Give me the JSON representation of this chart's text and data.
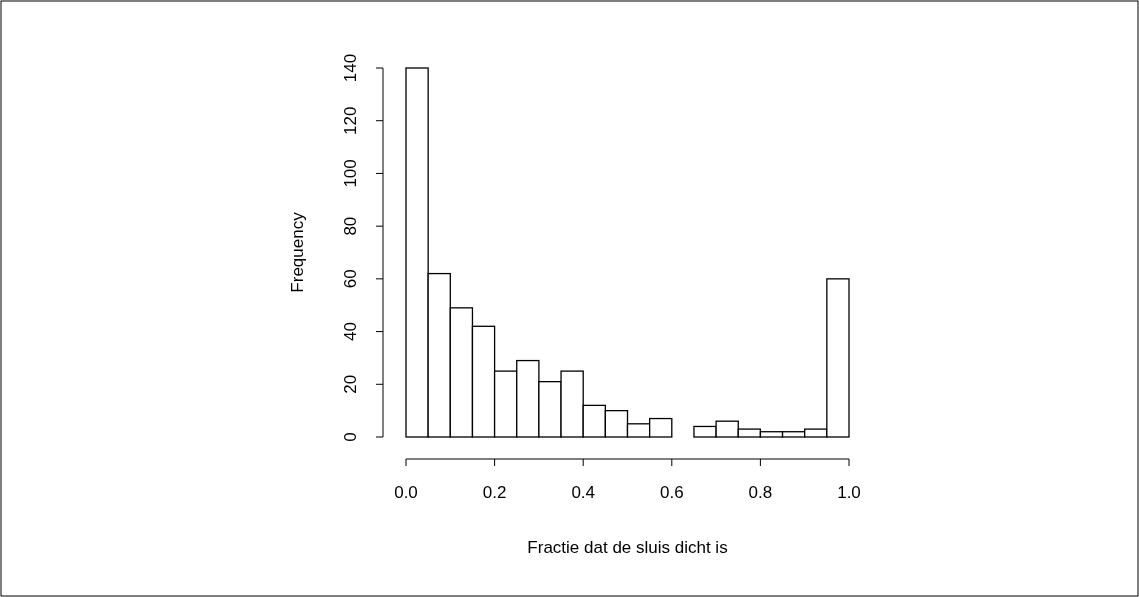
{
  "chart_data": {
    "type": "histogram",
    "xlabel": "Fractie dat de sluis dicht is",
    "ylabel": "Frequency",
    "bins": [
      0,
      0.05,
      0.1,
      0.15,
      0.2,
      0.25,
      0.3,
      0.35,
      0.4,
      0.45,
      0.5,
      0.55,
      0.6,
      0.65,
      0.7,
      0.75,
      0.8,
      0.85,
      0.9,
      0.95,
      1.0
    ],
    "values": [
      140,
      62,
      49,
      42,
      25,
      29,
      21,
      25,
      12,
      10,
      5,
      7,
      0,
      4,
      6,
      3,
      2,
      2,
      3,
      60
    ],
    "color": "#ffffff",
    "xlim": [
      0,
      1
    ],
    "xticks": [
      {
        "value": 0,
        "label": "0.0"
      },
      {
        "value": 0.2,
        "label": "0.2"
      },
      {
        "value": 0.4,
        "label": "0.4"
      },
      {
        "value": 0.6,
        "label": "0.6"
      },
      {
        "value": 0.8,
        "label": "0.8"
      },
      {
        "value": 1,
        "label": "1.0"
      }
    ],
    "ylim": [
      0,
      140
    ],
    "yticks": [
      0,
      20,
      40,
      60,
      80,
      100,
      120,
      140
    ],
    "grid": false
  }
}
